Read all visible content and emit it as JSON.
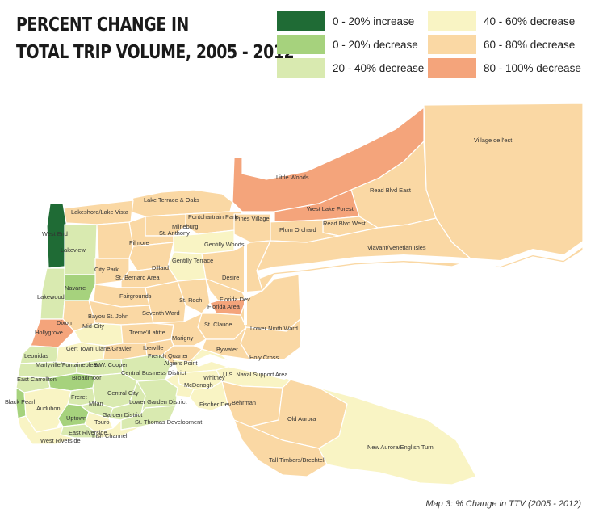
{
  "title_lines": [
    "Percent Change in",
    "Total Trip Volume, 2005 - 2012"
  ],
  "colors": {
    "inc_0_20": "#1f6b35",
    "dec_0_20": "#a6d27d",
    "dec_20_40": "#d9eab0",
    "dec_40_60": "#f9f4c4",
    "dec_60_80": "#fad8a4",
    "dec_80_100": "#f4a47b",
    "water": "#ffffff",
    "border": "#ffffff"
  },
  "legend": [
    {
      "label": "0 - 20% increase",
      "color": "#1f6b35"
    },
    {
      "label": "0 - 20% decrease",
      "color": "#a6d27d"
    },
    {
      "label": "20 - 40% decrease",
      "color": "#d9eab0"
    },
    {
      "label": "40 - 60% decrease",
      "color": "#f9f4c4"
    },
    {
      "label": "60 - 80% decrease",
      "color": "#fad8a4"
    },
    {
      "label": "80 - 100% decrease",
      "color": "#f4a47b"
    }
  ],
  "neighborhoods": [
    {
      "name": "Village de l'est",
      "cls": "dec_60_80"
    },
    {
      "name": "Little Woods",
      "cls": "dec_80_100"
    },
    {
      "name": "Read Blvd East",
      "cls": "dec_60_80"
    },
    {
      "name": "Lake Terrace & Oaks",
      "cls": "dec_60_80"
    },
    {
      "name": "West Lake Forest",
      "cls": "dec_80_100"
    },
    {
      "name": "Lakeshore/Lake Vista",
      "cls": "dec_60_80"
    },
    {
      "name": "Pontchartrain Park",
      "cls": "dec_60_80"
    },
    {
      "name": "Pines Village",
      "cls": "dec_60_80"
    },
    {
      "name": "Read Blvd West",
      "cls": "dec_60_80"
    },
    {
      "name": "Plum Orchard",
      "cls": "dec_60_80"
    },
    {
      "name": "Milneburg",
      "cls": "dec_60_80"
    },
    {
      "name": "West End",
      "cls": "inc_0_20"
    },
    {
      "name": "St. Anthony",
      "cls": "dec_60_80"
    },
    {
      "name": "Filmore",
      "cls": "dec_60_80"
    },
    {
      "name": "Gentilly Woods",
      "cls": "dec_40_60"
    },
    {
      "name": "Viavant/Venetian Isles",
      "cls": "dec_60_80"
    },
    {
      "name": "Lakeview",
      "cls": "dec_20_40"
    },
    {
      "name": "Gentilly Terrace",
      "cls": "dec_40_60"
    },
    {
      "name": "City Park",
      "cls": "dec_60_80"
    },
    {
      "name": "Dillard",
      "cls": "dec_60_80"
    },
    {
      "name": "St. Bernard Area",
      "cls": "dec_60_80"
    },
    {
      "name": "Desire",
      "cls": "dec_60_80"
    },
    {
      "name": "Navarre",
      "cls": "dec_0_20"
    },
    {
      "name": "Fairgrounds",
      "cls": "dec_60_80"
    },
    {
      "name": "Lakewood",
      "cls": "dec_20_40"
    },
    {
      "name": "St. Roch",
      "cls": "dec_60_80"
    },
    {
      "name": "Florida Dev",
      "cls": "dec_60_80"
    },
    {
      "name": "Florida Area",
      "cls": "dec_80_100"
    },
    {
      "name": "Seventh Ward",
      "cls": "dec_60_80"
    },
    {
      "name": "Bayou St. John",
      "cls": "dec_60_80"
    },
    {
      "name": "Dixon",
      "cls": "dec_60_80"
    },
    {
      "name": "Mid-City",
      "cls": "dec_40_60"
    },
    {
      "name": "Lower Ninth Ward",
      "cls": "dec_60_80"
    },
    {
      "name": "Hollygrove",
      "cls": "dec_80_100"
    },
    {
      "name": "St. Claude",
      "cls": "dec_60_80"
    },
    {
      "name": "Treme'/Lafitte",
      "cls": "dec_60_80"
    },
    {
      "name": "Marigny",
      "cls": "dec_60_80"
    },
    {
      "name": "Leonidas",
      "cls": "dec_20_40"
    },
    {
      "name": "Gert Town",
      "cls": "dec_40_60"
    },
    {
      "name": "Bywater",
      "cls": "dec_60_80"
    },
    {
      "name": "Tulane/Gravier",
      "cls": "dec_60_80"
    },
    {
      "name": "Iberville",
      "cls": "dec_60_80"
    },
    {
      "name": "French Quarter",
      "cls": "dec_60_80"
    },
    {
      "name": "Holy Cross",
      "cls": "dec_60_80"
    },
    {
      "name": "Marlyville/Fontainebleau",
      "cls": "dec_20_40"
    },
    {
      "name": "B.W. Cooper",
      "cls": "dec_20_40"
    },
    {
      "name": "Algiers Point",
      "cls": "dec_40_60"
    },
    {
      "name": "Central Business District",
      "cls": "dec_20_40"
    },
    {
      "name": "East Carrollton",
      "cls": "dec_20_40"
    },
    {
      "name": "Broadmoor",
      "cls": "dec_0_20"
    },
    {
      "name": "Whitney",
      "cls": "dec_40_60"
    },
    {
      "name": "U.S. Naval Support Area",
      "cls": "dec_40_60"
    },
    {
      "name": "McDonogh",
      "cls": "dec_40_60"
    },
    {
      "name": "Central City",
      "cls": "dec_20_40"
    },
    {
      "name": "Black Pearl",
      "cls": "dec_0_20"
    },
    {
      "name": "Freret",
      "cls": "dec_20_40"
    },
    {
      "name": "Lower Garden District",
      "cls": "dec_20_40"
    },
    {
      "name": "Fischer Dev",
      "cls": "dec_40_60"
    },
    {
      "name": "Behrman",
      "cls": "dec_60_80"
    },
    {
      "name": "Audubon",
      "cls": "dec_40_60"
    },
    {
      "name": "Milan",
      "cls": "dec_20_40"
    },
    {
      "name": "Garden District",
      "cls": "dec_20_40"
    },
    {
      "name": "Uptown",
      "cls": "dec_0_20"
    },
    {
      "name": "Touro",
      "cls": "dec_40_60"
    },
    {
      "name": "St. Thomas Development",
      "cls": "dec_20_40"
    },
    {
      "name": "Old Aurora",
      "cls": "dec_60_80"
    },
    {
      "name": "East Riverside",
      "cls": "dec_20_40"
    },
    {
      "name": "Irish Channel",
      "cls": "dec_40_60"
    },
    {
      "name": "West Riverside",
      "cls": "dec_40_60"
    },
    {
      "name": "New Aurora/English Turn",
      "cls": "dec_40_60"
    },
    {
      "name": "Tall Timbers/Brechtel",
      "cls": "dec_60_80"
    }
  ],
  "caption": "Map 3: % Change in TTV (2005 - 2012)"
}
